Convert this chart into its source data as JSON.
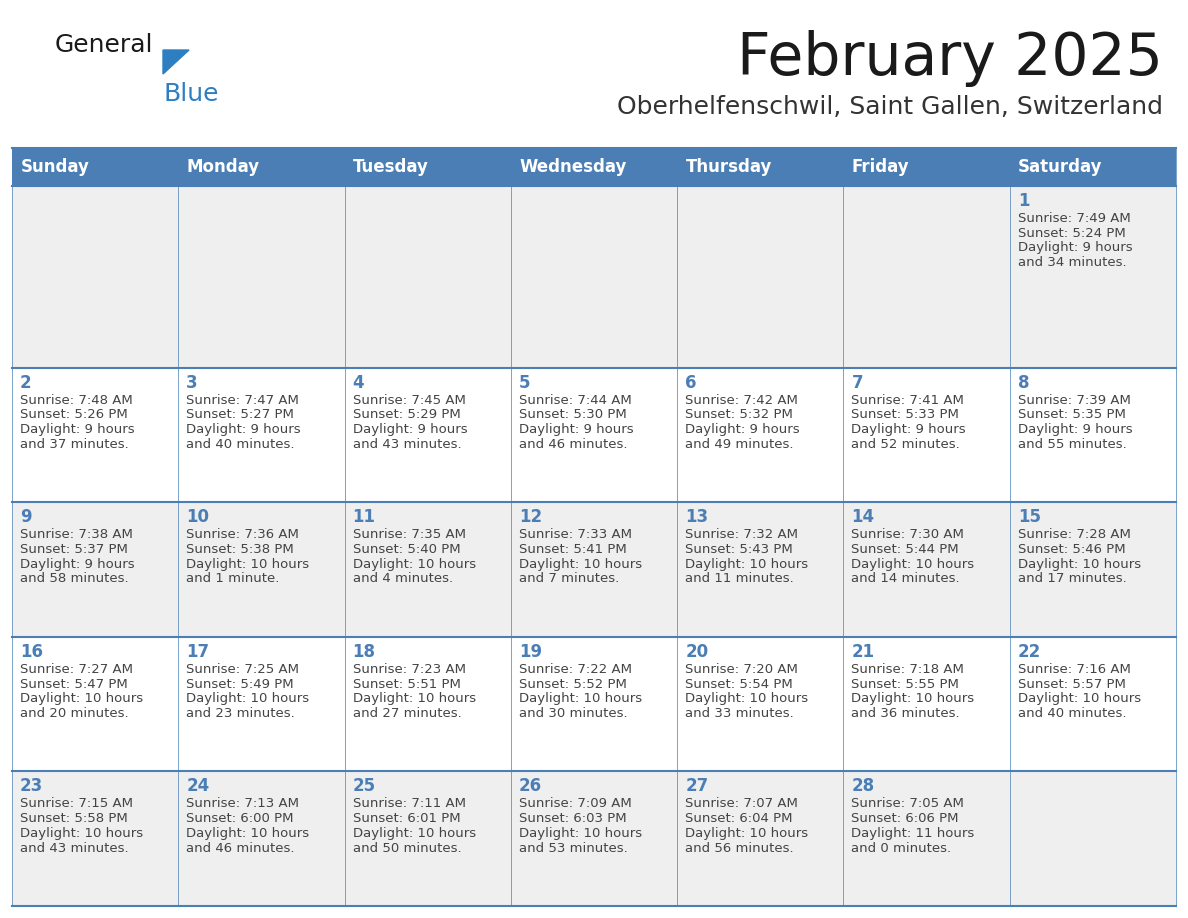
{
  "title": "February 2025",
  "subtitle": "Oberhelfenschwil, Saint Gallen, Switzerland",
  "header_bg": "#4a7eb5",
  "header_text_color": "#FFFFFF",
  "cell_bg_light": "#EFEFEF",
  "cell_bg_white": "#FFFFFF",
  "day_number_color": "#4a7eb5",
  "info_text_color": "#444444",
  "grid_line_color": "#4a7eb5",
  "days_of_week": [
    "Sunday",
    "Monday",
    "Tuesday",
    "Wednesday",
    "Thursday",
    "Friday",
    "Saturday"
  ],
  "weeks": [
    [
      null,
      null,
      null,
      null,
      null,
      null,
      1
    ],
    [
      2,
      3,
      4,
      5,
      6,
      7,
      8
    ],
    [
      9,
      10,
      11,
      12,
      13,
      14,
      15
    ],
    [
      16,
      17,
      18,
      19,
      20,
      21,
      22
    ],
    [
      23,
      24,
      25,
      26,
      27,
      28,
      null
    ]
  ],
  "day_data": {
    "1": {
      "sunrise": "7:49 AM",
      "sunset": "5:24 PM",
      "daylight_h": "9 hours",
      "daylight_m": "34 minutes"
    },
    "2": {
      "sunrise": "7:48 AM",
      "sunset": "5:26 PM",
      "daylight_h": "9 hours",
      "daylight_m": "37 minutes"
    },
    "3": {
      "sunrise": "7:47 AM",
      "sunset": "5:27 PM",
      "daylight_h": "9 hours",
      "daylight_m": "40 minutes"
    },
    "4": {
      "sunrise": "7:45 AM",
      "sunset": "5:29 PM",
      "daylight_h": "9 hours",
      "daylight_m": "43 minutes"
    },
    "5": {
      "sunrise": "7:44 AM",
      "sunset": "5:30 PM",
      "daylight_h": "9 hours",
      "daylight_m": "46 minutes"
    },
    "6": {
      "sunrise": "7:42 AM",
      "sunset": "5:32 PM",
      "daylight_h": "9 hours",
      "daylight_m": "49 minutes"
    },
    "7": {
      "sunrise": "7:41 AM",
      "sunset": "5:33 PM",
      "daylight_h": "9 hours",
      "daylight_m": "52 minutes"
    },
    "8": {
      "sunrise": "7:39 AM",
      "sunset": "5:35 PM",
      "daylight_h": "9 hours",
      "daylight_m": "55 minutes"
    },
    "9": {
      "sunrise": "7:38 AM",
      "sunset": "5:37 PM",
      "daylight_h": "9 hours",
      "daylight_m": "58 minutes"
    },
    "10": {
      "sunrise": "7:36 AM",
      "sunset": "5:38 PM",
      "daylight_h": "10 hours",
      "daylight_m": "1 minute"
    },
    "11": {
      "sunrise": "7:35 AM",
      "sunset": "5:40 PM",
      "daylight_h": "10 hours",
      "daylight_m": "4 minutes"
    },
    "12": {
      "sunrise": "7:33 AM",
      "sunset": "5:41 PM",
      "daylight_h": "10 hours",
      "daylight_m": "7 minutes"
    },
    "13": {
      "sunrise": "7:32 AM",
      "sunset": "5:43 PM",
      "daylight_h": "10 hours",
      "daylight_m": "11 minutes"
    },
    "14": {
      "sunrise": "7:30 AM",
      "sunset": "5:44 PM",
      "daylight_h": "10 hours",
      "daylight_m": "14 minutes"
    },
    "15": {
      "sunrise": "7:28 AM",
      "sunset": "5:46 PM",
      "daylight_h": "10 hours",
      "daylight_m": "17 minutes"
    },
    "16": {
      "sunrise": "7:27 AM",
      "sunset": "5:47 PM",
      "daylight_h": "10 hours",
      "daylight_m": "20 minutes"
    },
    "17": {
      "sunrise": "7:25 AM",
      "sunset": "5:49 PM",
      "daylight_h": "10 hours",
      "daylight_m": "23 minutes"
    },
    "18": {
      "sunrise": "7:23 AM",
      "sunset": "5:51 PM",
      "daylight_h": "10 hours",
      "daylight_m": "27 minutes"
    },
    "19": {
      "sunrise": "7:22 AM",
      "sunset": "5:52 PM",
      "daylight_h": "10 hours",
      "daylight_m": "30 minutes"
    },
    "20": {
      "sunrise": "7:20 AM",
      "sunset": "5:54 PM",
      "daylight_h": "10 hours",
      "daylight_m": "33 minutes"
    },
    "21": {
      "sunrise": "7:18 AM",
      "sunset": "5:55 PM",
      "daylight_h": "10 hours",
      "daylight_m": "36 minutes"
    },
    "22": {
      "sunrise": "7:16 AM",
      "sunset": "5:57 PM",
      "daylight_h": "10 hours",
      "daylight_m": "40 minutes"
    },
    "23": {
      "sunrise": "7:15 AM",
      "sunset": "5:58 PM",
      "daylight_h": "10 hours",
      "daylight_m": "43 minutes"
    },
    "24": {
      "sunrise": "7:13 AM",
      "sunset": "6:00 PM",
      "daylight_h": "10 hours",
      "daylight_m": "46 minutes"
    },
    "25": {
      "sunrise": "7:11 AM",
      "sunset": "6:01 PM",
      "daylight_h": "10 hours",
      "daylight_m": "50 minutes"
    },
    "26": {
      "sunrise": "7:09 AM",
      "sunset": "6:03 PM",
      "daylight_h": "10 hours",
      "daylight_m": "53 minutes"
    },
    "27": {
      "sunrise": "7:07 AM",
      "sunset": "6:04 PM",
      "daylight_h": "10 hours",
      "daylight_m": "56 minutes"
    },
    "28": {
      "sunrise": "7:05 AM",
      "sunset": "6:06 PM",
      "daylight_h": "11 hours",
      "daylight_m": "0 minutes"
    }
  },
  "logo_general_color": "#1a1a1a",
  "logo_blue_color": "#2E7EC2",
  "logo_triangle_color": "#2E7EC2",
  "title_color": "#1a1a1a",
  "subtitle_color": "#333333"
}
